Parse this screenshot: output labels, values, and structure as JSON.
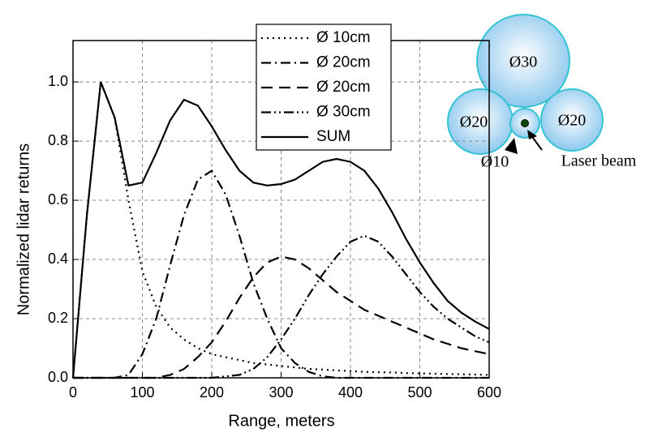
{
  "chart_data": {
    "type": "line",
    "x_label": "Range, meters",
    "y_label": "Normalized lidar returns",
    "x": [
      0,
      20,
      40,
      60,
      80,
      100,
      120,
      140,
      160,
      180,
      200,
      220,
      240,
      260,
      280,
      300,
      320,
      340,
      360,
      380,
      400,
      420,
      440,
      460,
      480,
      500,
      520,
      540,
      560,
      580,
      600
    ],
    "series": [
      {
        "name": "Ø 10cm",
        "color": "#000000",
        "dash": "dot",
        "values": [
          0,
          0.55,
          1.0,
          0.88,
          0.6,
          0.36,
          0.24,
          0.17,
          0.13,
          0.1,
          0.08,
          0.07,
          0.06,
          0.05,
          0.045,
          0.04,
          0.035,
          0.03,
          0.028,
          0.025,
          0.023,
          0.02,
          0.019,
          0.018,
          0.016,
          0.015,
          0.014,
          0.013,
          0.012,
          0.011,
          0.01
        ]
      },
      {
        "name": "Ø 20cm",
        "color": "#000000",
        "dash": "dash-dot",
        "values": [
          0,
          0,
          0,
          0,
          0.01,
          0.08,
          0.2,
          0.38,
          0.55,
          0.67,
          0.7,
          0.62,
          0.48,
          0.32,
          0.2,
          0.1,
          0.05,
          0.02,
          0.005,
          0,
          0,
          0,
          0,
          0,
          0,
          0,
          0,
          0,
          0,
          0,
          0
        ]
      },
      {
        "name": "Ø 20cm",
        "color": "#000000",
        "dash": "dash",
        "values": [
          0,
          0,
          0,
          0,
          0,
          0,
          0,
          0.01,
          0.03,
          0.07,
          0.12,
          0.19,
          0.27,
          0.34,
          0.39,
          0.41,
          0.4,
          0.37,
          0.33,
          0.29,
          0.26,
          0.23,
          0.21,
          0.19,
          0.17,
          0.15,
          0.13,
          0.115,
          0.1,
          0.09,
          0.08
        ]
      },
      {
        "name": "Ø 30cm",
        "color": "#000000",
        "dash": "dash-dot-dot",
        "values": [
          0,
          0,
          0,
          0,
          0,
          0,
          0,
          0,
          0,
          0,
          0,
          0.005,
          0.01,
          0.03,
          0.07,
          0.13,
          0.2,
          0.28,
          0.35,
          0.41,
          0.46,
          0.48,
          0.46,
          0.41,
          0.35,
          0.29,
          0.24,
          0.2,
          0.17,
          0.14,
          0.12
        ]
      },
      {
        "name": "SUM",
        "color": "#000000",
        "dash": "solid",
        "values": [
          0,
          0.55,
          1.0,
          0.88,
          0.65,
          0.66,
          0.76,
          0.87,
          0.94,
          0.92,
          0.85,
          0.77,
          0.7,
          0.66,
          0.65,
          0.655,
          0.67,
          0.7,
          0.73,
          0.74,
          0.73,
          0.7,
          0.64,
          0.56,
          0.47,
          0.39,
          0.32,
          0.26,
          0.22,
          0.19,
          0.165
        ]
      }
    ],
    "xlim": [
      0,
      600
    ],
    "xticks": [
      0,
      100,
      200,
      300,
      400,
      500,
      600
    ],
    "ylim": [
      0,
      1.14
    ],
    "yticks": [
      {
        "value": 0,
        "label": "0.0"
      },
      0.2,
      0.4,
      0.6,
      0.8,
      {
        "value": 1,
        "label": "1.0"
      }
    ],
    "grid": true,
    "legend": "top",
    "annotations": [
      "Ø30",
      "Ø20",
      "Ø20",
      "Ø10",
      "Laser beam"
    ]
  }
}
